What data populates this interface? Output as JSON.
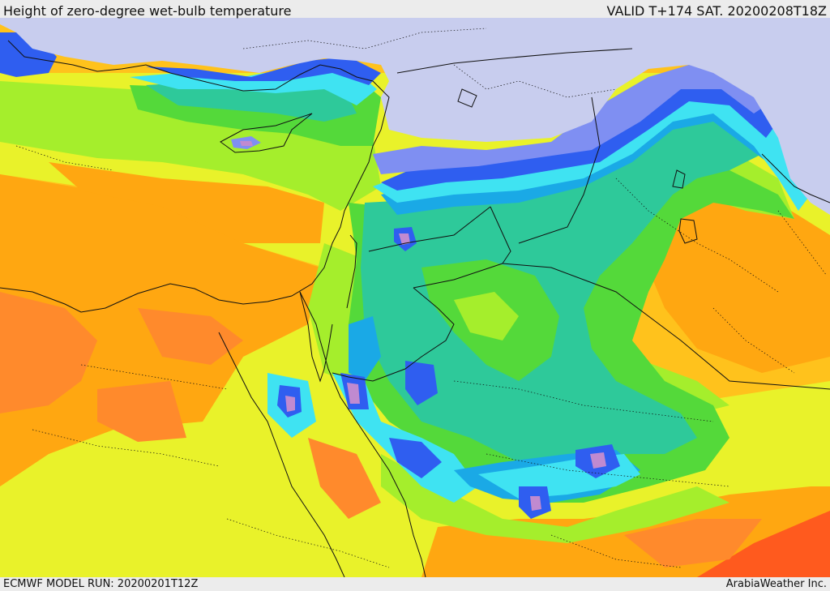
{
  "header": {
    "title": "Height of zero-degree wet-bulb temperature",
    "valid": "VALID T+174 SAT. 20200208T18Z"
  },
  "footer": {
    "model_run": "ECMWF MODEL RUN: 20200201T12Z",
    "credit": "ArabiaWeather Inc."
  },
  "palette": {
    "below_freezing": "#c8cdee",
    "periwinkle": "#7f8ff2",
    "blue": "#2f5ef0",
    "cyan": "#3fe3f2",
    "sky": "#1aa9e6",
    "teal": "#2ec99a",
    "green": "#54d93a",
    "lime": "#a5ee2c",
    "yellow": "#e9f22a",
    "gold": "#ffc21c",
    "orange": "#ffa711",
    "dark_orange": "#ff8a2c",
    "red_orange": "#ff5a1e",
    "violet_core": "#c08ad0",
    "border_color": "#111111"
  }
}
